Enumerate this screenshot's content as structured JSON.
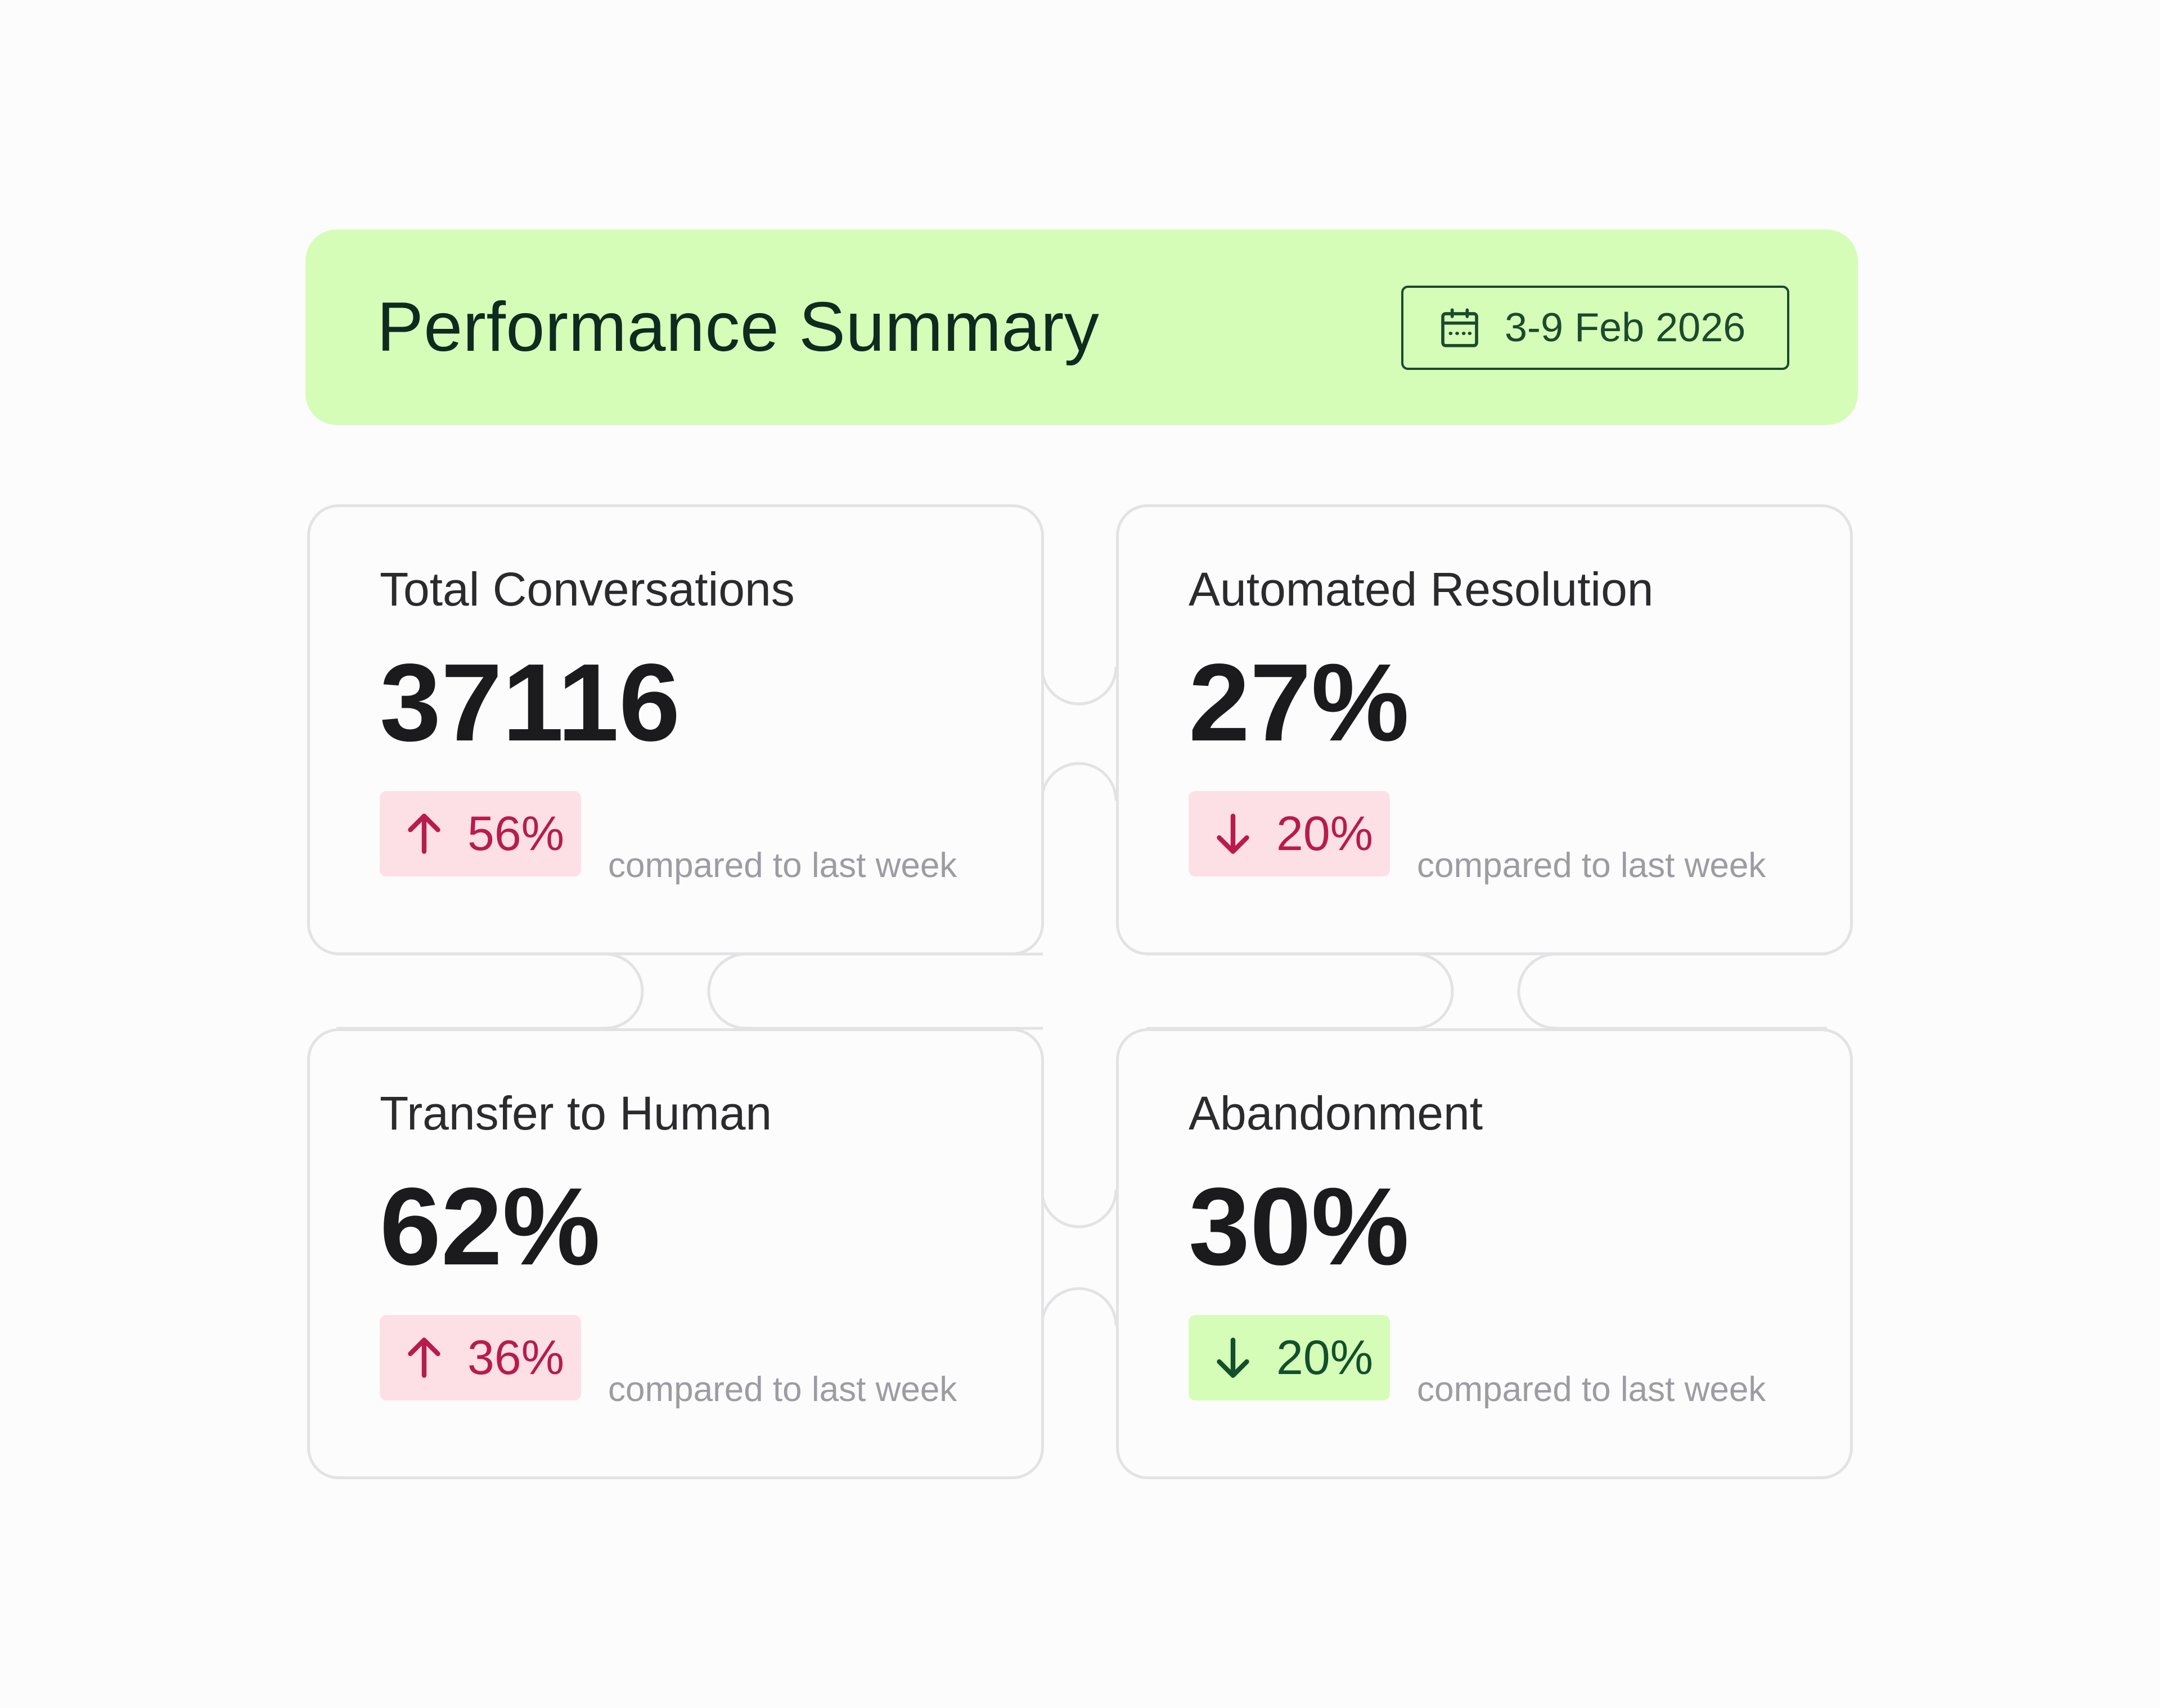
{
  "header": {
    "title": "Performance Summary",
    "date_range": "3-9 Feb 2026",
    "background_color": "#d6fdb8"
  },
  "cards": [
    {
      "title": "Total Conversations",
      "value": "37116",
      "delta": "56%",
      "direction": "up",
      "tone": "red",
      "compare": "compared to last week"
    },
    {
      "title": "Automated Resolution",
      "value": "27%",
      "delta": "20%",
      "direction": "down",
      "tone": "red",
      "compare": "compared to last week"
    },
    {
      "title": "Transfer to Human",
      "value": "62%",
      "delta": "36%",
      "direction": "up",
      "tone": "red",
      "compare": "compared to last week"
    },
    {
      "title": "Abandonment",
      "value": "30%",
      "delta": "20%",
      "direction": "down",
      "tone": "green",
      "compare": "compared to last week"
    }
  ],
  "icons": {
    "calendar": "calendar-icon",
    "up": "arrow-up-icon",
    "down": "arrow-down-icon"
  },
  "colors": {
    "negative_text": "#b71c4c",
    "negative_bg": "#fde0e6",
    "positive_text": "#12502c",
    "positive_bg": "#d6fdb8"
  }
}
